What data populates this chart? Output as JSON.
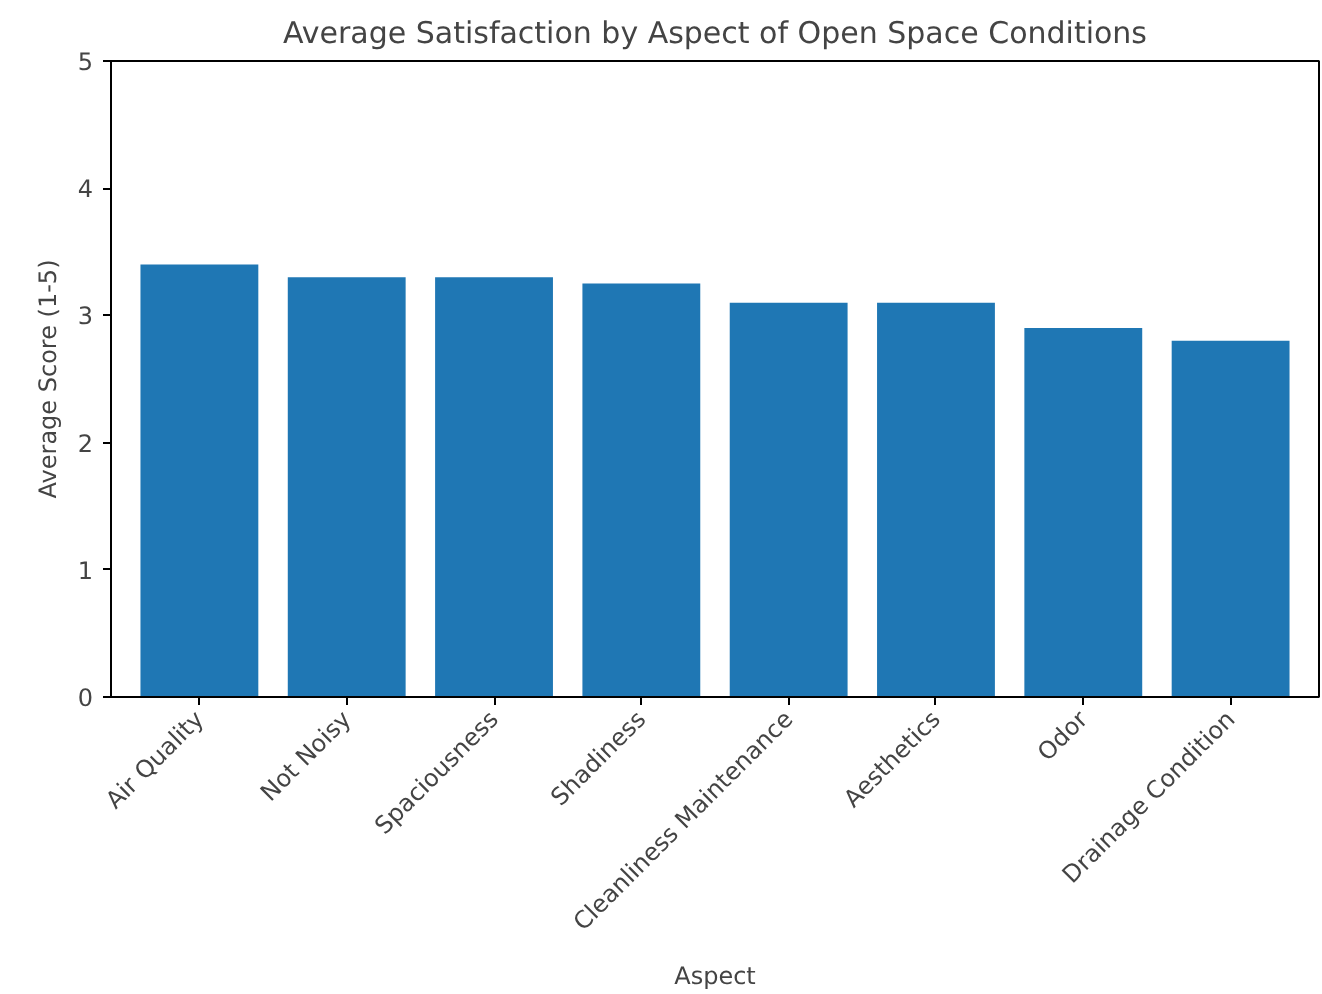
{
  "chart_data": {
    "type": "bar",
    "title": "Average Satisfaction by Aspect of Open Space Conditions",
    "xlabel": "Aspect",
    "ylabel": "Average Score (1-5)",
    "categories": [
      "Air Quality",
      "Not Noisy",
      "Spaciousness",
      "Shadiness",
      "Cleanliness Maintenance",
      "Aesthetics",
      "Odor",
      "Drainage Condition"
    ],
    "values": [
      3.4,
      3.3,
      3.3,
      3.25,
      3.1,
      3.1,
      2.9,
      2.8
    ],
    "color": "#1f77b4",
    "ylim": [
      0,
      5
    ],
    "yticks": [
      0,
      1,
      2,
      3,
      4,
      5
    ],
    "grid": false
  }
}
